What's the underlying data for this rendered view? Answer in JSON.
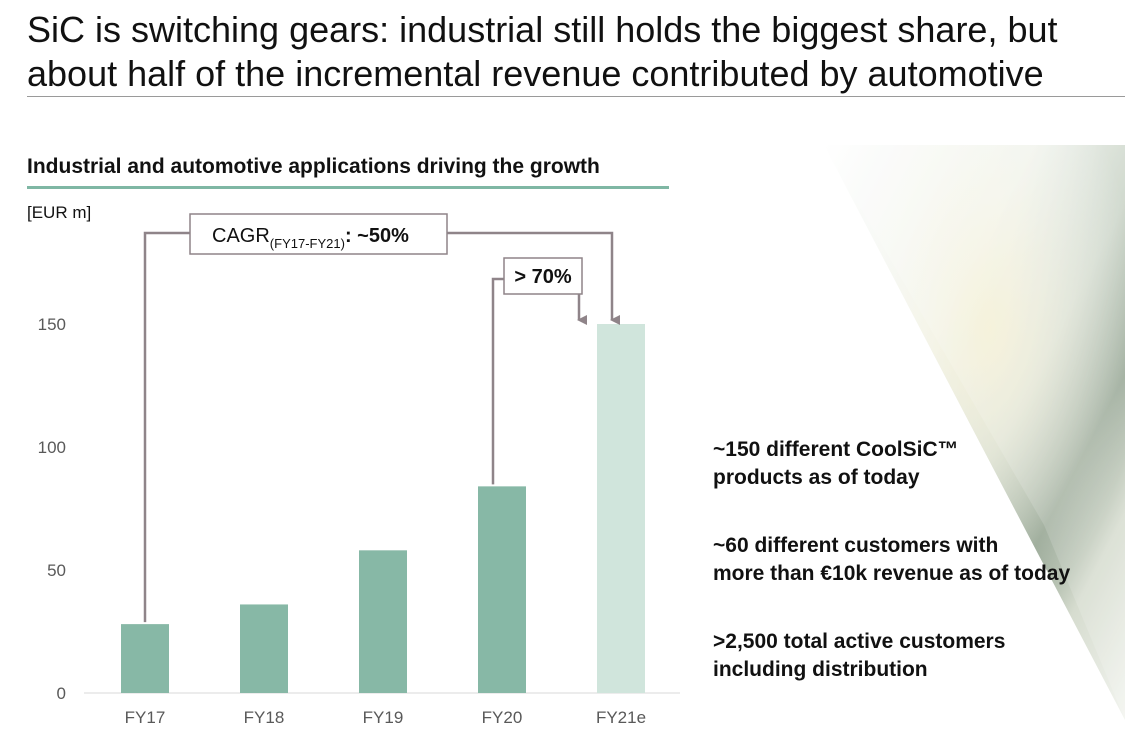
{
  "page": {
    "title_line1": "SiC is switching gears: industrial still holds the biggest share, but",
    "title_line2": "about half of the incremental revenue contributed by automotive"
  },
  "chart_heading": "Industrial and automotive applications driving the growth",
  "unit_label": "[EUR m]",
  "annotations": {
    "cagr_main": "CAGR",
    "cagr_sub": "(FY17-FY21)",
    "cagr_value": ": ~50%",
    "growth_label": "> 70%"
  },
  "colors": {
    "bar": "#87b8a6",
    "bar_estimate": "#d0e5dc",
    "arrow": "#8f8489",
    "accent_rule": "#7fb7a4"
  },
  "chart_data": {
    "type": "bar",
    "categories": [
      "FY17",
      "FY18",
      "FY19",
      "FY20",
      "FY21e"
    ],
    "values": [
      28,
      36,
      58,
      84,
      150
    ],
    "estimate": [
      false,
      false,
      false,
      false,
      true
    ],
    "ylim": [
      0,
      150
    ],
    "yticks": [
      0,
      50,
      100,
      150
    ],
    "ylabel": "[EUR m]",
    "xlabel": "",
    "grid": false
  },
  "facts": [
    {
      "line1": "~150 different CoolSiC™",
      "line2": "products as of today"
    },
    {
      "line1": "~60 different customers with",
      "line2": "more than €10k revenue as of today"
    },
    {
      "line1": ">2,500 total active customers",
      "line2": "including distribution"
    }
  ]
}
